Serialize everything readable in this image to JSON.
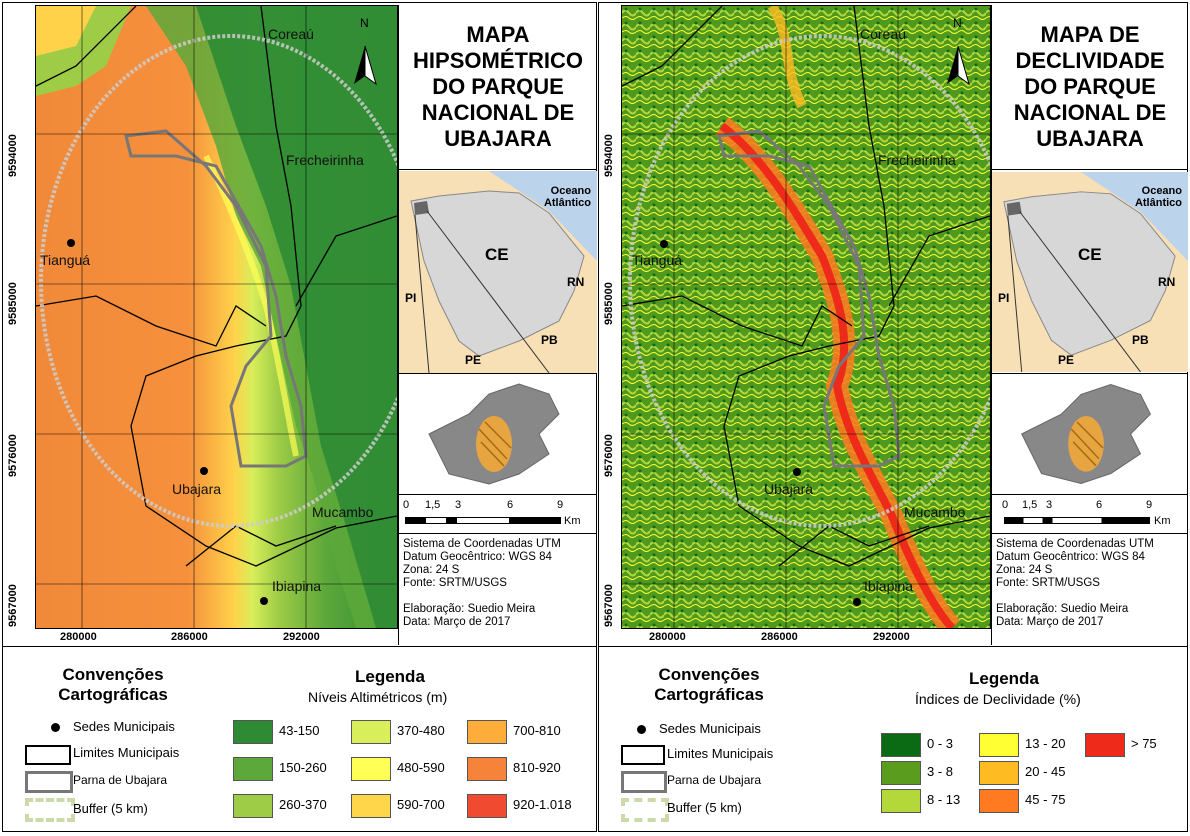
{
  "left": {
    "title": "MAPA HIPSOMÉTRICO DO PARQUE NACIONAL DE UBAJARA",
    "legend_subtitle": "Níveis Altimétricos (m)",
    "classes": [
      {
        "label": "43-150",
        "color": "#2e8b34"
      },
      {
        "label": "150-260",
        "color": "#5da83a"
      },
      {
        "label": "260-370",
        "color": "#9fcc46"
      },
      {
        "label": "370-480",
        "color": "#d8ee5a"
      },
      {
        "label": "480-590",
        "color": "#ffff55"
      },
      {
        "label": "590-700",
        "color": "#ffd54a"
      },
      {
        "label": "700-810",
        "color": "#ffad3a"
      },
      {
        "label": "810-920",
        "color": "#f6833a"
      },
      {
        "label": "920-1.018",
        "color": "#f04a30"
      }
    ]
  },
  "right": {
    "title": "MAPA DE DECLIVIDADE DO PARQUE NACIONAL DE UBAJARA",
    "legend_subtitle": "Índices de Declividade (%)",
    "classes": [
      {
        "label": "0 - 3",
        "color": "#0b6b14"
      },
      {
        "label": "3 - 8",
        "color": "#5a9c1e"
      },
      {
        "label": "8 - 13",
        "color": "#b4d83a"
      },
      {
        "label": "13 - 20",
        "color": "#ffff33"
      },
      {
        "label": "20 - 45",
        "color": "#ffbb22"
      },
      {
        "label": "45 - 75",
        "color": "#ff7a20"
      },
      {
        "label": "> 75",
        "color": "#ee2a1a"
      }
    ]
  },
  "shared": {
    "places": {
      "coreau": "Coreaú",
      "frecheirinha": "Frecheirinha",
      "tiangua": "Tianguá",
      "ubajara": "Ubajara",
      "mucambo": "Mucambo",
      "ibiapina": "Ibiapina"
    },
    "north": "N",
    "x_ticks": [
      "280000",
      "286000",
      "292000"
    ],
    "y_ticks": [
      "9594000",
      "9585000",
      "9576000",
      "9567000"
    ],
    "inset": {
      "ocean": "Oceano Atlântico",
      "ce": "CE",
      "rn": "RN",
      "pi": "PI",
      "pb": "PB",
      "pe": "PE"
    },
    "scale": {
      "ticks": [
        "0",
        "1,5",
        "3",
        "6",
        "9"
      ],
      "unit": "Km"
    },
    "info": [
      "Sistema de Coordenadas UTM",
      "Datum Geocêntrico: WGS 84",
      "Zona: 24 S",
      "Fonte: SRTM/USGS",
      "",
      "Elaboração: Suedio Meira",
      "Data: Março de 2017"
    ],
    "conv_title_1": "Convenções",
    "conv_title_2": "Cartográficas",
    "legend_title": "Legenda",
    "conv": {
      "sedes": "Sedes Municipais",
      "limites": "Limites Municipais",
      "parna": "Parna de Ubajara",
      "buffer": "Buffer (5 km)"
    }
  }
}
